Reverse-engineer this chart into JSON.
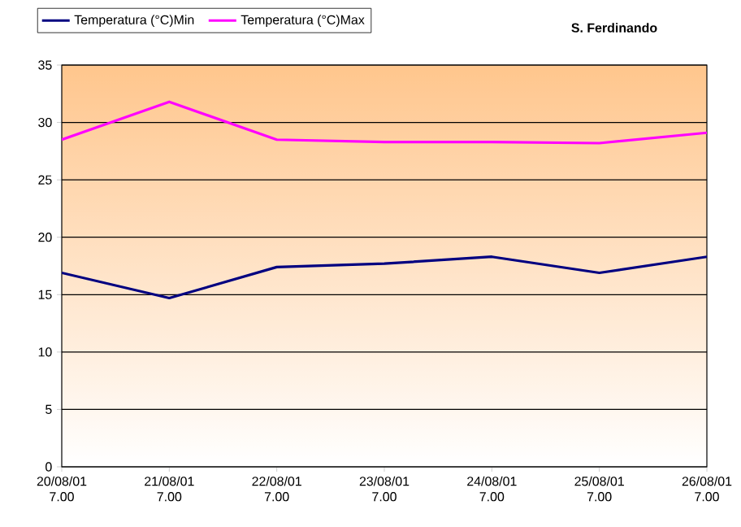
{
  "chart_data": {
    "type": "line",
    "title": "S. Ferdinando",
    "categories": [
      "20/08/01 7.00",
      "21/08/01 7.00",
      "22/08/01 7.00",
      "23/08/01 7.00",
      "24/08/01 7.00",
      "25/08/01 7.00",
      "26/08/01 7.00"
    ],
    "series": [
      {
        "name": "Temperatura (°C)Min",
        "color": "#000080",
        "values": [
          16.9,
          14.7,
          17.4,
          17.7,
          18.3,
          16.9,
          18.3
        ]
      },
      {
        "name": "Temperatura (°C)Max",
        "color": "#ff00ff",
        "values": [
          28.5,
          31.8,
          28.5,
          28.3,
          28.3,
          28.2,
          29.1
        ]
      }
    ],
    "ylim": [
      0,
      35
    ],
    "yticks": [
      0,
      5,
      10,
      15,
      20,
      25,
      30,
      35
    ],
    "grid": "y",
    "legend": "top",
    "marker": "none",
    "line_style": "solid"
  }
}
